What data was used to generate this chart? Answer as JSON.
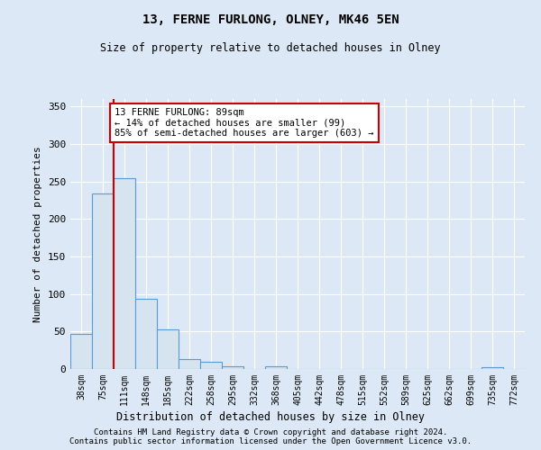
{
  "title": "13, FERNE FURLONG, OLNEY, MK46 5EN",
  "subtitle": "Size of property relative to detached houses in Olney",
  "xlabel": "Distribution of detached houses by size in Olney",
  "ylabel": "Number of detached properties",
  "bin_labels": [
    "38sqm",
    "75sqm",
    "111sqm",
    "148sqm",
    "185sqm",
    "222sqm",
    "258sqm",
    "295sqm",
    "332sqm",
    "368sqm",
    "405sqm",
    "442sqm",
    "478sqm",
    "515sqm",
    "552sqm",
    "589sqm",
    "625sqm",
    "662sqm",
    "699sqm",
    "735sqm",
    "772sqm"
  ],
  "bar_values": [
    47,
    234,
    255,
    94,
    53,
    13,
    10,
    4,
    0,
    4,
    0,
    0,
    0,
    0,
    0,
    0,
    0,
    0,
    0,
    3,
    0
  ],
  "bar_color": "#d6e4f0",
  "bar_edge_color": "#5b9bd5",
  "vline_x": 1.5,
  "vline_color": "#cc0000",
  "annotation_text": "13 FERNE FURLONG: 89sqm\n← 14% of detached houses are smaller (99)\n85% of semi-detached houses are larger (603) →",
  "annotation_box_color": "#ffffff",
  "annotation_box_edge": "#cc0000",
  "ylim": [
    0,
    360
  ],
  "yticks": [
    0,
    50,
    100,
    150,
    200,
    250,
    300,
    350
  ],
  "footer1": "Contains HM Land Registry data © Crown copyright and database right 2024.",
  "footer2": "Contains public sector information licensed under the Open Government Licence v3.0.",
  "bg_color": "#dce8f5",
  "plot_bg_color": "#dce8f5"
}
